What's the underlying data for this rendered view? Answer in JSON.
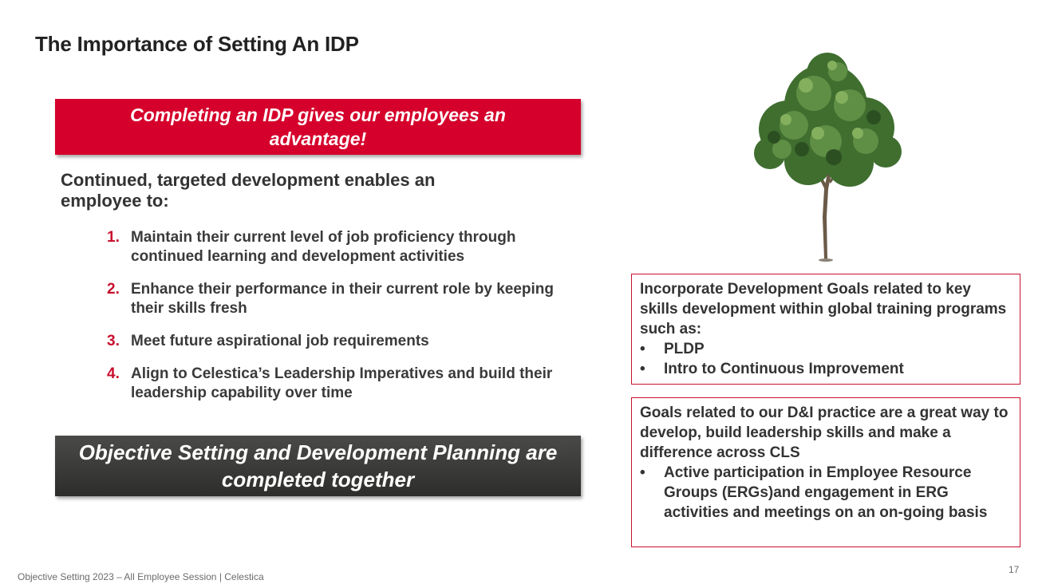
{
  "slide": {
    "title": "The Importance of Setting An IDP",
    "red_banner": "Completing an IDP gives our employees an advantage!",
    "intro": "Continued, targeted development enables an employee to:",
    "items": [
      {
        "num": "1.",
        "text": "Maintain their current level of job proficiency through continued learning and development activities"
      },
      {
        "num": "2.",
        "text": "Enhance their performance in their current role by keeping their skills fresh"
      },
      {
        "num": "3.",
        "text": "Meet future aspirational job requirements"
      },
      {
        "num": "4.",
        "text": "Align to Celestica’s Leadership Imperatives and build their leadership capability over time"
      }
    ],
    "dark_banner": "Objective Setting and Development Planning are completed together",
    "box1": {
      "text": "Incorporate Development Goals related to key skills development within global training programs such as:",
      "bullets": [
        "PLDP",
        "Intro to Continuous Improvement"
      ]
    },
    "box2": {
      "text": "Goals related to our D&I practice are a great way to develop, build leadership skills and make a difference across CLS",
      "bullets": [
        "Active participation in Employee Resource Groups (ERGs)and engagement in ERG activities and meetings on an on-going basis"
      ]
    },
    "bullet_char": "•",
    "footer": "Objective Setting 2023 – All Employee Session | Celestica",
    "page_number": "17",
    "image": "tree-image"
  },
  "colors": {
    "accent_red": "#d5002b",
    "number_red": "#c8102e",
    "dark_banner": "#3a3a38",
    "text": "#333333"
  }
}
